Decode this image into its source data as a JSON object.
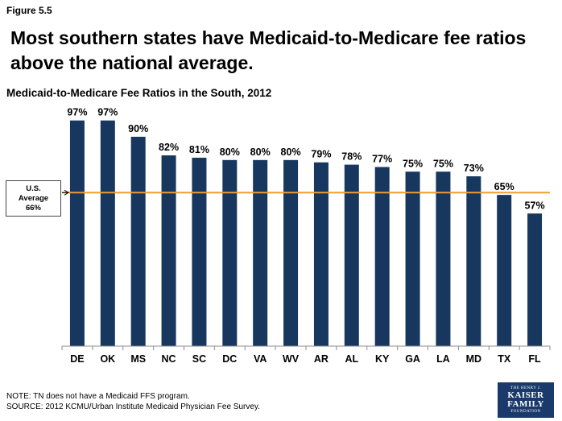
{
  "figure_label": "Figure 5.5",
  "headline": "Most southern states have Medicaid-to-Medicare fee ratios above the national average.",
  "reference": {
    "line1": "U.S.",
    "line2": "Average",
    "line3": "66%",
    "value": 66,
    "color": "#f39c32"
  },
  "footnote": {
    "note": "NOTE: TN does not have a Medicaid FFS program.",
    "source": "SOURCE: 2012 KCMU/Urban Institute Medicaid Physician Fee Survey."
  },
  "logo": {
    "top": "THE HENRY J.",
    "line1": "KAISER",
    "line2": "FAMILY",
    "bottom": "FOUNDATION"
  },
  "colors": {
    "bar": "#17375e",
    "axis": "#8c8c8c"
  },
  "chart_data": {
    "type": "bar",
    "title": "Medicaid-to-Medicare Fee Ratios in the South, 2012",
    "categories": [
      "DE",
      "OK",
      "MS",
      "NC",
      "SC",
      "DC",
      "VA",
      "WV",
      "AR",
      "AL",
      "KY",
      "GA",
      "LA",
      "MD",
      "TX",
      "FL"
    ],
    "values": [
      97,
      97,
      90,
      82,
      81,
      80,
      80,
      80,
      79,
      78,
      77,
      75,
      75,
      73,
      65,
      57
    ],
    "value_labels": [
      "97%",
      "97%",
      "90%",
      "82%",
      "81%",
      "80%",
      "80%",
      "80%",
      "79%",
      "78%",
      "77%",
      "75%",
      "75%",
      "73%",
      "65%",
      "57%"
    ],
    "ylim": [
      0,
      100
    ],
    "grid": false,
    "y_axis_visible": false,
    "legend": "none"
  }
}
